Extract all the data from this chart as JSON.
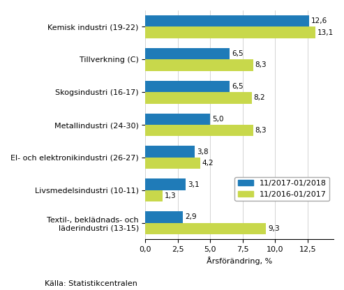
{
  "categories": [
    "Kemisk industri (19-22)",
    "Tillverkning (C)",
    "Skogsindustri (16-17)",
    "Metallindustri (24-30)",
    "El- och elektronikindustri (26-27)",
    "Livsmedelsindustri (10-11)",
    "Textil-, beklädnads- och\nläderindustri (13-15)"
  ],
  "series1_label": "11/2017-01/2018",
  "series2_label": "11/2016-01/2017",
  "series1_values": [
    12.6,
    6.5,
    6.5,
    5.0,
    3.8,
    3.1,
    2.9
  ],
  "series2_values": [
    13.1,
    8.3,
    8.2,
    8.3,
    4.2,
    1.3,
    9.3
  ],
  "series1_color": "#1F7BB8",
  "series2_color": "#C8D84B",
  "xlabel": "Årsförändring, %",
  "xlim": [
    0,
    14.5
  ],
  "xticks": [
    0.0,
    2.5,
    5.0,
    7.5,
    10.0,
    12.5
  ],
  "xtick_labels": [
    "0,0",
    "2,5",
    "5,0",
    "7,5",
    "10,0",
    "12,5"
  ],
  "footnote": "Källa: Statistikcentralen",
  "bar_height": 0.35,
  "value_fontsize": 7.5,
  "label_fontsize": 8.0,
  "tick_fontsize": 8.0,
  "legend_fontsize": 8.0,
  "footnote_fontsize": 8.0,
  "background_color": "#ffffff"
}
